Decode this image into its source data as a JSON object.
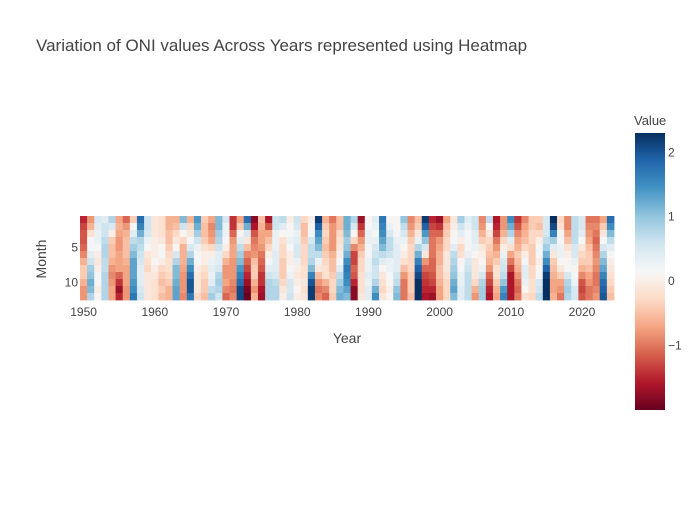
{
  "chart_data": {
    "type": "heatmap",
    "title": "Variation of ONI values Across Years represented using Heatmap",
    "xlabel": "Year",
    "ylabel": "Month",
    "x_start": 1950,
    "x_end": 2024,
    "months": [
      1,
      2,
      3,
      4,
      5,
      6,
      7,
      8,
      9,
      10,
      11,
      12
    ],
    "x_ticks": [
      1950,
      1960,
      1970,
      1980,
      1990,
      2000,
      2010,
      2020
    ],
    "y_ticks": [
      5,
      10
    ],
    "colorbar": {
      "title": "Value",
      "range": [
        -2.0,
        2.3
      ],
      "ticks": [
        2,
        1,
        0,
        -1
      ],
      "tick_labels": [
        "2",
        "1",
        "0",
        "−1"
      ],
      "colorscale": [
        "#67001f",
        "#b2182b",
        "#d6604d",
        "#f4a582",
        "#fddbc7",
        "#f7f7f7",
        "#d1e5f0",
        "#92c5de",
        "#4393c3",
        "#2166ac",
        "#053061"
      ]
    },
    "annual_values": {
      "1950": [
        -1.5,
        -1.3,
        -1.2,
        -1.2,
        -1.1,
        -0.9,
        -0.6,
        -0.4,
        -0.4,
        -0.6,
        -0.8,
        -0.8
      ],
      "1951": [
        -0.8,
        -0.6,
        -0.2,
        0.2,
        0.2,
        0.4,
        0.6,
        0.9,
        1.0,
        1.2,
        1.1,
        0.8
      ],
      "1952": [
        0.5,
        0.4,
        0.3,
        0.3,
        0.2,
        0.0,
        -0.1,
        0.0,
        0.2,
        0.1,
        0.0,
        0.1
      ],
      "1953": [
        0.4,
        0.6,
        0.6,
        0.7,
        0.8,
        0.8,
        0.7,
        0.7,
        0.8,
        0.8,
        0.8,
        0.8
      ],
      "1954": [
        0.8,
        0.5,
        0.0,
        -0.4,
        -0.5,
        -0.5,
        -0.6,
        -0.8,
        -0.9,
        -0.8,
        -0.7,
        -0.7
      ],
      "1955": [
        -0.7,
        -0.6,
        -0.7,
        -0.8,
        -0.8,
        -0.7,
        -0.7,
        -0.7,
        -1.1,
        -1.4,
        -1.7,
        -1.5
      ],
      "1956": [
        -1.1,
        -0.8,
        -0.6,
        -0.5,
        -0.5,
        -0.5,
        -0.6,
        -0.7,
        -0.7,
        -0.7,
        -0.8,
        -0.8
      ],
      "1957": [
        -0.4,
        0.1,
        0.4,
        0.7,
        0.9,
        1.1,
        1.3,
        1.3,
        1.3,
        1.4,
        1.5,
        1.7
      ],
      "1958": [
        1.8,
        1.6,
        1.2,
        0.8,
        0.7,
        0.6,
        0.5,
        0.4,
        0.4,
        0.4,
        0.5,
        0.6
      ],
      "1959": [
        0.6,
        0.6,
        0.5,
        0.3,
        0.2,
        -0.1,
        -0.2,
        -0.3,
        -0.1,
        -0.1,
        -0.1,
        -0.1
      ],
      "1960": [
        -0.1,
        -0.1,
        -0.1,
        0.0,
        0.0,
        0.0,
        0.1,
        0.0,
        -0.1,
        -0.2,
        -0.2,
        -0.2
      ],
      "1961": [
        -0.2,
        -0.2,
        -0.2,
        -0.1,
        0.1,
        0.2,
        0.0,
        -0.3,
        -0.4,
        -0.5,
        -0.4,
        -0.5
      ],
      "1962": [
        -0.6,
        -0.6,
        -0.5,
        -0.5,
        -0.4,
        -0.3,
        -0.2,
        -0.2,
        -0.3,
        -0.4,
        -0.6,
        -0.6
      ],
      "1963": [
        -0.6,
        -0.5,
        -0.3,
        -0.1,
        0.1,
        0.5,
        0.8,
        1.1,
        1.1,
        1.2,
        1.3,
        1.3
      ],
      "1964": [
        1.1,
        0.6,
        0.1,
        -0.3,
        -0.6,
        -0.6,
        -0.6,
        -0.7,
        -0.8,
        -0.8,
        -0.8,
        -0.9
      ],
      "1965": [
        -0.6,
        -0.3,
        -0.1,
        0.2,
        0.5,
        0.8,
        1.2,
        1.5,
        1.8,
        2.0,
        2.0,
        1.7
      ],
      "1966": [
        1.4,
        1.2,
        0.9,
        0.6,
        0.3,
        0.2,
        0.2,
        0.0,
        -0.1,
        -0.1,
        -0.1,
        -0.3
      ],
      "1967": [
        -0.4,
        -0.5,
        -0.5,
        -0.4,
        -0.2,
        0.0,
        0.0,
        -0.2,
        -0.3,
        -0.4,
        -0.4,
        -0.5
      ],
      "1968": [
        -0.7,
        -0.9,
        -0.8,
        -0.7,
        -0.3,
        0.0,
        0.3,
        0.4,
        0.3,
        0.4,
        0.7,
        0.9
      ],
      "1969": [
        1.1,
        1.1,
        0.9,
        0.8,
        0.6,
        0.4,
        0.4,
        0.5,
        0.8,
        0.9,
        0.8,
        0.6
      ],
      "1970": [
        0.5,
        0.3,
        0.3,
        0.2,
        0.0,
        -0.3,
        -0.6,
        -0.8,
        -0.8,
        -0.7,
        -0.9,
        -1.1
      ],
      "1971": [
        -1.4,
        -1.4,
        -1.1,
        -0.8,
        -0.7,
        -0.7,
        -0.8,
        -0.8,
        -0.8,
        -0.9,
        -1.0,
        -0.9
      ],
      "1972": [
        -0.7,
        -0.4,
        0.1,
        0.4,
        0.7,
        0.9,
        1.1,
        1.4,
        1.6,
        1.8,
        2.1,
        2.1
      ],
      "1973": [
        1.8,
        1.2,
        0.5,
        -0.1,
        -0.5,
        -0.9,
        -1.1,
        -1.3,
        -1.5,
        -1.7,
        -1.9,
        -2.0
      ],
      "1974": [
        -1.8,
        -1.6,
        -1.2,
        -1.0,
        -0.9,
        -0.8,
        -0.5,
        -0.4,
        -0.4,
        -0.6,
        -0.8,
        -0.6
      ],
      "1975": [
        -0.5,
        -0.6,
        -0.7,
        -0.7,
        -0.8,
        -1.0,
        -1.1,
        -1.2,
        -1.4,
        -1.4,
        -1.6,
        -1.7
      ],
      "1976": [
        -1.6,
        -1.2,
        -0.7,
        -0.5,
        -0.3,
        0.0,
        0.2,
        0.4,
        0.6,
        0.8,
        0.8,
        0.8
      ],
      "1977": [
        0.6,
        0.6,
        0.3,
        0.3,
        0.3,
        0.4,
        0.4,
        0.4,
        0.5,
        0.7,
        0.8,
        0.8
      ],
      "1978": [
        0.7,
        0.4,
        0.1,
        -0.2,
        -0.3,
        -0.3,
        -0.4,
        -0.4,
        -0.4,
        -0.3,
        -0.1,
        0.0
      ],
      "1979": [
        0.0,
        0.1,
        0.2,
        0.3,
        0.2,
        0.0,
        0.0,
        0.2,
        0.3,
        0.5,
        0.5,
        0.6
      ],
      "1980": [
        0.6,
        0.5,
        0.3,
        0.4,
        0.5,
        0.5,
        0.3,
        0.0,
        -0.1,
        0.0,
        0.1,
        0.0
      ],
      "1981": [
        -0.3,
        -0.5,
        -0.5,
        -0.4,
        -0.3,
        -0.3,
        -0.3,
        -0.2,
        -0.2,
        -0.1,
        -0.2,
        -0.1
      ],
      "1982": [
        0.0,
        0.1,
        0.2,
        0.5,
        0.7,
        0.7,
        0.8,
        1.1,
        1.6,
        2.0,
        2.2,
        2.2
      ],
      "1983": [
        2.2,
        1.9,
        1.5,
        1.3,
        1.1,
        0.7,
        0.3,
        -0.1,
        -0.5,
        -0.8,
        -1.0,
        -0.9
      ],
      "1984": [
        -0.6,
        -0.4,
        -0.3,
        -0.4,
        -0.5,
        -0.4,
        -0.3,
        -0.2,
        -0.2,
        -0.6,
        -0.9,
        -1.1
      ],
      "1985": [
        -1.0,
        -0.8,
        -0.8,
        -0.8,
        -0.8,
        -0.6,
        -0.5,
        -0.5,
        -0.4,
        -0.3,
        -0.3,
        -0.4
      ],
      "1986": [
        -0.5,
        -0.5,
        -0.3,
        -0.2,
        -0.1,
        0.0,
        0.2,
        0.4,
        0.7,
        0.9,
        1.1,
        1.2
      ],
      "1987": [
        1.2,
        1.2,
        1.1,
        0.9,
        1.0,
        1.2,
        1.5,
        1.7,
        1.6,
        1.5,
        1.3,
        1.1
      ],
      "1988": [
        0.8,
        0.5,
        0.1,
        -0.3,
        -0.9,
        -1.3,
        -1.3,
        -1.1,
        -1.2,
        -1.5,
        -1.8,
        -1.8
      ],
      "1989": [
        -1.7,
        -1.4,
        -1.1,
        -0.8,
        -0.6,
        -0.4,
        -0.3,
        -0.3,
        -0.2,
        -0.2,
        -0.2,
        -0.1
      ],
      "1990": [
        0.1,
        0.2,
        0.3,
        0.3,
        0.2,
        0.2,
        0.3,
        0.3,
        0.4,
        0.3,
        0.4,
        0.4
      ],
      "1991": [
        0.4,
        0.3,
        0.2,
        0.3,
        0.5,
        0.6,
        0.7,
        0.6,
        0.6,
        0.8,
        1.2,
        1.5
      ],
      "1992": [
        1.7,
        1.6,
        1.5,
        1.3,
        1.1,
        0.7,
        0.4,
        0.1,
        -0.1,
        -0.2,
        -0.3,
        -0.1
      ],
      "1993": [
        0.1,
        0.3,
        0.5,
        0.7,
        0.7,
        0.6,
        0.3,
        0.3,
        0.2,
        0.1,
        0.0,
        0.1
      ],
      "1994": [
        0.1,
        0.1,
        0.2,
        0.3,
        0.4,
        0.4,
        0.4,
        0.4,
        0.6,
        0.7,
        1.0,
        1.1
      ],
      "1995": [
        1.0,
        0.7,
        0.5,
        0.3,
        0.1,
        0.0,
        -0.2,
        -0.5,
        -0.8,
        -1.0,
        -1.0,
        -1.0
      ],
      "1996": [
        -0.9,
        -0.8,
        -0.6,
        -0.4,
        -0.3,
        -0.3,
        -0.3,
        -0.3,
        -0.4,
        -0.4,
        -0.4,
        -0.5
      ],
      "1997": [
        -0.5,
        -0.4,
        -0.1,
        0.3,
        0.8,
        1.2,
        1.6,
        1.9,
        2.1,
        2.3,
        2.4,
        2.4
      ],
      "1998": [
        2.2,
        1.9,
        1.4,
        1.0,
        0.5,
        -0.1,
        -0.8,
        -1.1,
        -1.3,
        -1.4,
        -1.5,
        -1.6
      ],
      "1999": [
        -1.5,
        -1.3,
        -1.1,
        -1.0,
        -1.0,
        -1.0,
        -1.1,
        -1.1,
        -1.2,
        -1.3,
        -1.5,
        -1.7
      ],
      "2000": [
        -1.7,
        -1.4,
        -1.1,
        -0.8,
        -0.7,
        -0.6,
        -0.6,
        -0.5,
        -0.5,
        -0.6,
        -0.7,
        -0.7
      ],
      "2001": [
        -0.7,
        -0.5,
        -0.4,
        -0.3,
        -0.3,
        -0.1,
        -0.1,
        -0.1,
        -0.2,
        -0.3,
        -0.3,
        -0.3
      ],
      "2002": [
        -0.1,
        0.0,
        0.1,
        0.2,
        0.4,
        0.7,
        0.8,
        0.9,
        1.0,
        1.2,
        1.3,
        1.1
      ],
      "2003": [
        0.9,
        0.6,
        0.4,
        0.0,
        -0.3,
        -0.2,
        0.1,
        0.2,
        0.3,
        0.3,
        0.4,
        0.4
      ],
      "2004": [
        0.4,
        0.3,
        0.2,
        0.2,
        0.2,
        0.3,
        0.5,
        0.6,
        0.7,
        0.7,
        0.7,
        0.7
      ],
      "2005": [
        0.6,
        0.6,
        0.4,
        0.4,
        0.3,
        0.1,
        -0.1,
        -0.1,
        -0.1,
        -0.3,
        -0.6,
        -0.8
      ],
      "2006": [
        -0.9,
        -0.8,
        -0.6,
        -0.4,
        -0.1,
        0.0,
        0.1,
        0.3,
        0.5,
        0.8,
        0.9,
        0.9
      ],
      "2007": [
        0.7,
        0.2,
        -0.1,
        -0.3,
        -0.4,
        -0.5,
        -0.6,
        -0.8,
        -1.1,
        -1.3,
        -1.5,
        -1.6
      ],
      "2008": [
        -1.6,
        -1.5,
        -1.3,
        -1.0,
        -0.8,
        -0.6,
        -0.4,
        -0.2,
        -0.2,
        -0.4,
        -0.6,
        -0.7
      ],
      "2009": [
        -0.8,
        -0.8,
        -0.6,
        -0.3,
        0.0,
        0.3,
        0.5,
        0.6,
        0.7,
        1.0,
        1.4,
        1.6
      ],
      "2010": [
        1.5,
        1.2,
        0.8,
        0.4,
        -0.2,
        -0.7,
        -1.0,
        -1.3,
        -1.6,
        -1.6,
        -1.6,
        -1.6
      ],
      "2011": [
        -1.4,
        -1.2,
        -0.9,
        -0.7,
        -0.6,
        -0.4,
        -0.5,
        -0.6,
        -0.8,
        -1.0,
        -1.1,
        -1.0
      ],
      "2012": [
        -0.9,
        -0.7,
        -0.6,
        -0.5,
        -0.3,
        0.0,
        0.2,
        0.4,
        0.4,
        0.3,
        0.1,
        -0.2
      ],
      "2013": [
        -0.4,
        -0.4,
        -0.3,
        -0.3,
        -0.4,
        -0.4,
        -0.4,
        -0.3,
        -0.3,
        -0.2,
        -0.2,
        -0.3
      ],
      "2014": [
        -0.4,
        -0.5,
        -0.3,
        0.0,
        0.2,
        0.2,
        0.0,
        0.1,
        0.2,
        0.5,
        0.6,
        0.7
      ],
      "2015": [
        0.5,
        0.5,
        0.5,
        0.7,
        0.9,
        1.2,
        1.5,
        1.9,
        2.2,
        2.4,
        2.6,
        2.6
      ],
      "2016": [
        2.5,
        2.1,
        1.6,
        0.9,
        0.4,
        -0.1,
        -0.4,
        -0.5,
        -0.6,
        -0.7,
        -0.7,
        -0.6
      ],
      "2017": [
        -0.3,
        -0.2,
        0.1,
        0.2,
        0.3,
        0.3,
        0.1,
        -0.1,
        -0.4,
        -0.7,
        -0.8,
        -1.0
      ],
      "2018": [
        -0.9,
        -0.9,
        -0.7,
        -0.5,
        -0.2,
        0.0,
        0.1,
        0.2,
        0.5,
        0.8,
        0.9,
        0.8
      ],
      "2019": [
        0.7,
        0.7,
        0.7,
        0.7,
        0.5,
        0.5,
        0.3,
        0.1,
        0.2,
        0.3,
        0.5,
        0.5
      ],
      "2020": [
        0.5,
        0.5,
        0.4,
        0.2,
        -0.1,
        -0.3,
        -0.4,
        -0.6,
        -0.9,
        -1.2,
        -1.3,
        -1.2
      ],
      "2021": [
        -1.0,
        -0.9,
        -0.8,
        -0.7,
        -0.5,
        -0.4,
        -0.4,
        -0.5,
        -0.7,
        -0.8,
        -1.0,
        -1.0
      ],
      "2022": [
        -1.0,
        -0.9,
        -1.0,
        -1.1,
        -1.0,
        -0.9,
        -0.8,
        -0.9,
        -1.0,
        -1.0,
        -0.9,
        -0.8
      ],
      "2023": [
        -0.7,
        -0.4,
        -0.1,
        0.2,
        0.5,
        0.8,
        1.1,
        1.3,
        1.6,
        1.8,
        1.9,
        2.0
      ],
      "2024": [
        1.8,
        1.5,
        1.1,
        0.7,
        0.4,
        0.2,
        0.0,
        -0.1,
        -0.2,
        -0.3,
        -0.4,
        -0.5
      ]
    }
  }
}
